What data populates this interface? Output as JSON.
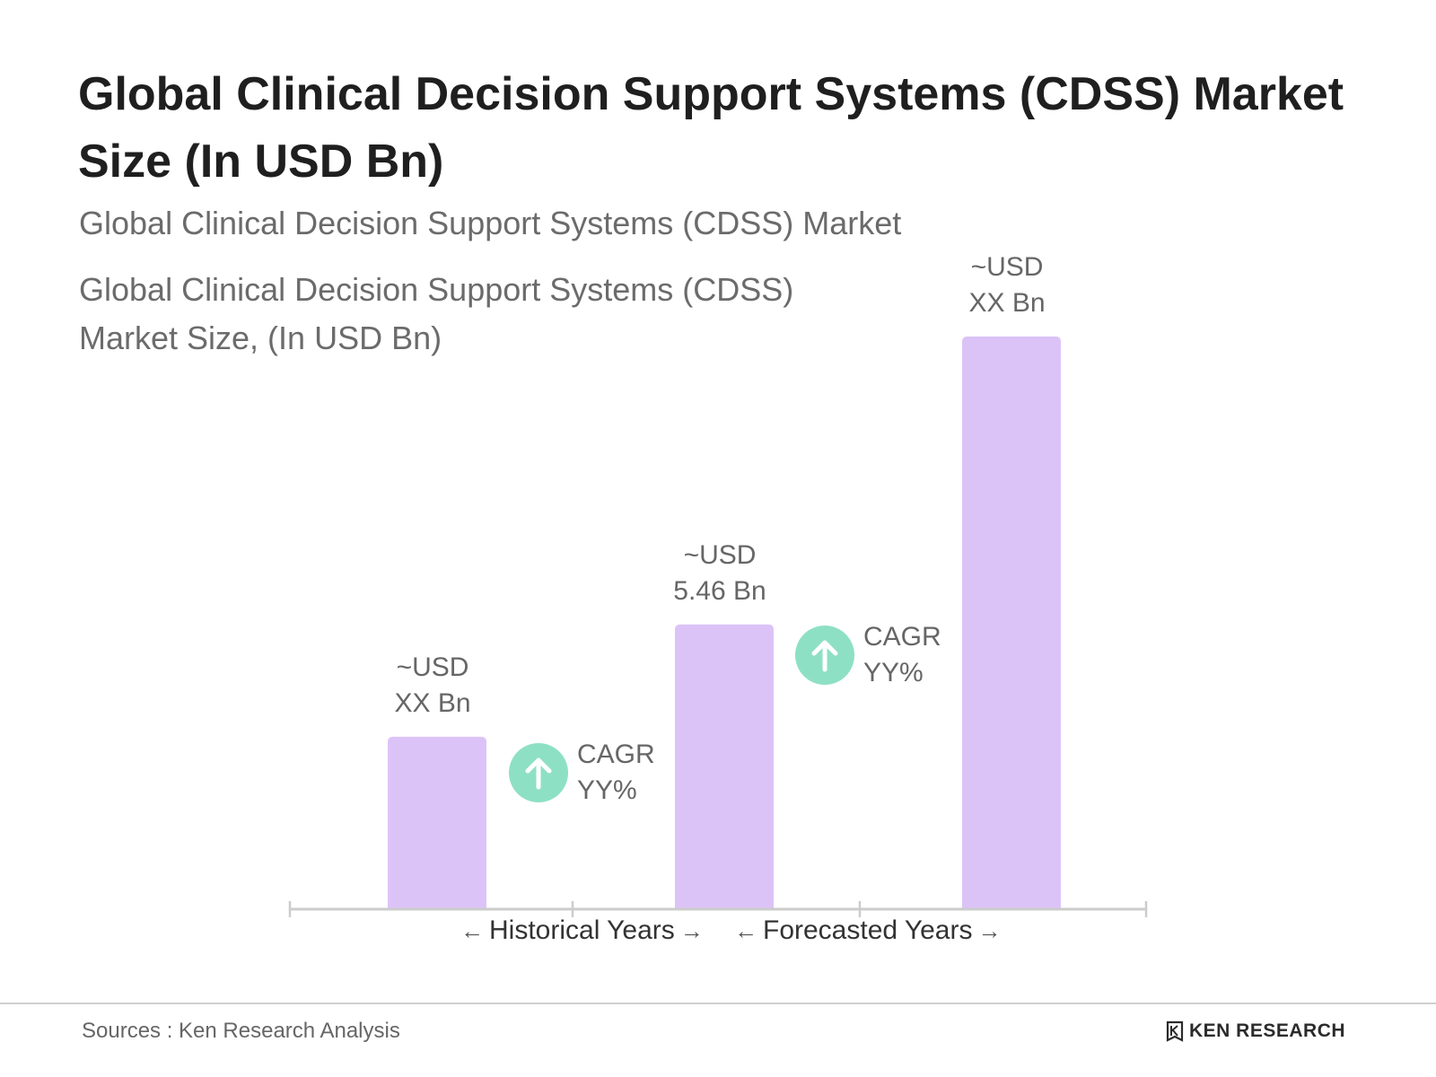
{
  "title": "Global Clinical Decision Support Systems (CDSS) Market Size (In USD Bn)",
  "subtitle_line1": "Global Clinical Decision Support Systems (CDSS) Market",
  "subtitle_line2": "Global Clinical Decision Support Systems (CDSS) Market Size, (In USD Bn)",
  "colors": {
    "bar": "#dcc3f7",
    "cagr_circle": "#8ee0c5",
    "axis": "#cccccc"
  },
  "chart_data": {
    "type": "bar",
    "categories": [
      "",
      "",
      ""
    ],
    "values": [
      3.3,
      5.46,
      11.0
    ],
    "value_labels": [
      {
        "line1": "~USD",
        "line2": "XX Bn"
      },
      {
        "line1": "~USD",
        "line2": "5.46 Bn"
      },
      {
        "line1": "~USD",
        "line2": "XX Bn"
      }
    ],
    "ylim": [
      0,
      12
    ],
    "grid": false,
    "annotations": [
      {
        "icon": "up-arrow-icon",
        "line1": "CAGR",
        "line2": "YY%",
        "between": [
          0,
          1
        ]
      },
      {
        "icon": "up-arrow-icon",
        "line1": "CAGR",
        "line2": "YY%",
        "between": [
          1,
          2
        ]
      }
    ],
    "x_periods": [
      {
        "label": "Historical Years"
      },
      {
        "label": "Forecasted Years"
      }
    ]
  },
  "footer": {
    "source": "Sources : Ken Research Analysis",
    "brand": "KEN RESEARCH"
  }
}
